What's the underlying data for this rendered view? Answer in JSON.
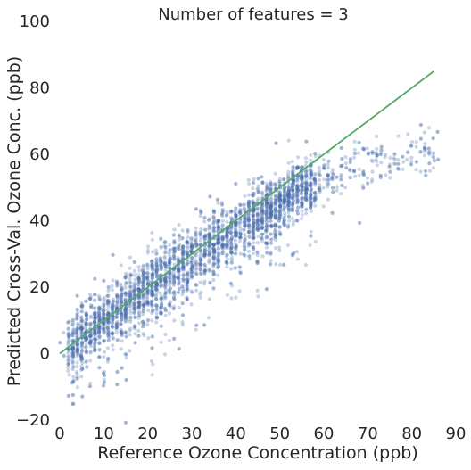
{
  "chart_data": {
    "type": "scatter",
    "title": "Number of features = 3",
    "xlabel": "Reference Ozone Concentration (ppb)",
    "ylabel": "Predicted Cross-Val. Ozone Conc. (ppb)",
    "xlim": [
      0,
      90
    ],
    "ylim": [
      -20,
      100
    ],
    "xticks": [
      "0",
      "10",
      "20",
      "30",
      "40",
      "50",
      "60",
      "70",
      "80",
      "90"
    ],
    "yticks": [
      "−20",
      "0",
      "20",
      "40",
      "60",
      "80",
      "100"
    ],
    "grid": false,
    "legend": "none",
    "colors": {
      "points": "#4c72b0",
      "line": "#55a868"
    },
    "point_trend": {
      "x_range": [
        0,
        86
      ],
      "approx_center": [
        [
          0,
          0
        ],
        [
          10,
          10
        ],
        [
          20,
          19
        ],
        [
          30,
          29
        ],
        [
          40,
          37
        ],
        [
          50,
          45
        ],
        [
          55,
          50
        ],
        [
          60,
          53
        ],
        [
          70,
          57
        ],
        [
          80,
          61
        ],
        [
          86,
          63
        ]
      ],
      "approx_spread_ppb": 5
    },
    "fit_line": {
      "x": [
        0,
        85
      ],
      "y": [
        0,
        85
      ]
    }
  }
}
